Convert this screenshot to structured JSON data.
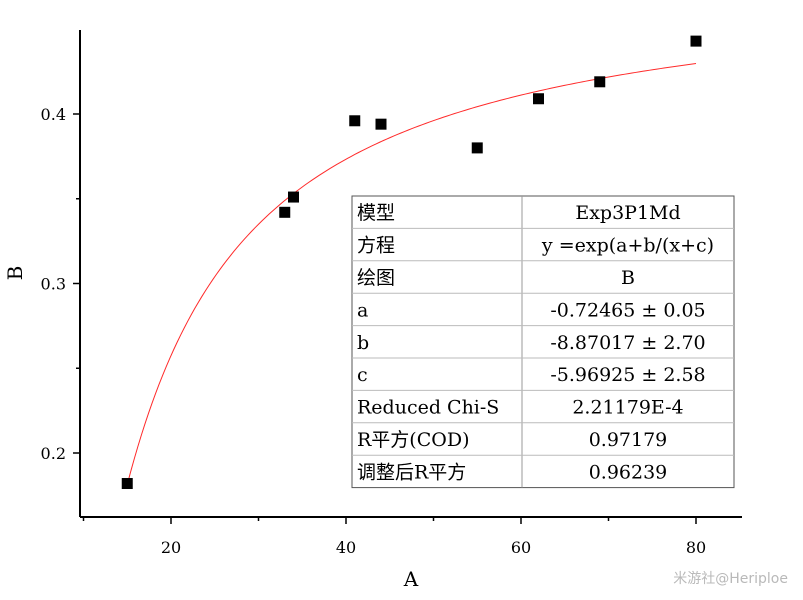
{
  "chart_data": {
    "type": "scatter",
    "xlabel": "A",
    "ylabel": "B",
    "xlim": [
      10,
      85
    ],
    "ylim": [
      0.162,
      0.45
    ],
    "x_ticks": [
      20,
      40,
      60,
      80
    ],
    "y_ticks": [
      0.2,
      0.3,
      0.4
    ],
    "x_tick_labels": [
      "20",
      "40",
      "60",
      "80"
    ],
    "y_tick_labels": [
      "0.2",
      "0.3",
      "0.4"
    ],
    "grid": false,
    "series": [
      {
        "points": [
          {
            "x": 15,
            "y": 0.182
          },
          {
            "x": 33,
            "y": 0.342
          },
          {
            "x": 34,
            "y": 0.351
          },
          {
            "x": 41,
            "y": 0.396
          },
          {
            "x": 44,
            "y": 0.394
          },
          {
            "x": 55,
            "y": 0.38
          },
          {
            "x": 62,
            "y": 0.409
          },
          {
            "x": 69,
            "y": 0.419
          },
          {
            "x": 80,
            "y": 0.443
          }
        ],
        "marker": "square",
        "color": "#000000"
      }
    ],
    "fit": {
      "a": -0.72465,
      "b": -8.87017,
      "c": -5.96925,
      "x_range": [
        15,
        80
      ],
      "color": "#ff2a2a"
    },
    "table": [
      {
        "key": "模型",
        "value": "Exp3P1Md"
      },
      {
        "key": "方程",
        "value": "y =exp(a+b/(x+c)"
      },
      {
        "key": "绘图",
        "value": "B"
      },
      {
        "key": "a",
        "value": "-0.72465 ± 0.05"
      },
      {
        "key": "b",
        "value": "-8.87017 ± 2.70"
      },
      {
        "key": "c",
        "value": "-5.96925 ± 2.58"
      },
      {
        "key": "Reduced Chi-S",
        "value": "2.21179E-4"
      },
      {
        "key": "R平方(COD)",
        "value": "0.97179"
      },
      {
        "key": "调整后R平方",
        "value": "0.96239"
      }
    ]
  },
  "watermark": "米游社@Heriploe"
}
